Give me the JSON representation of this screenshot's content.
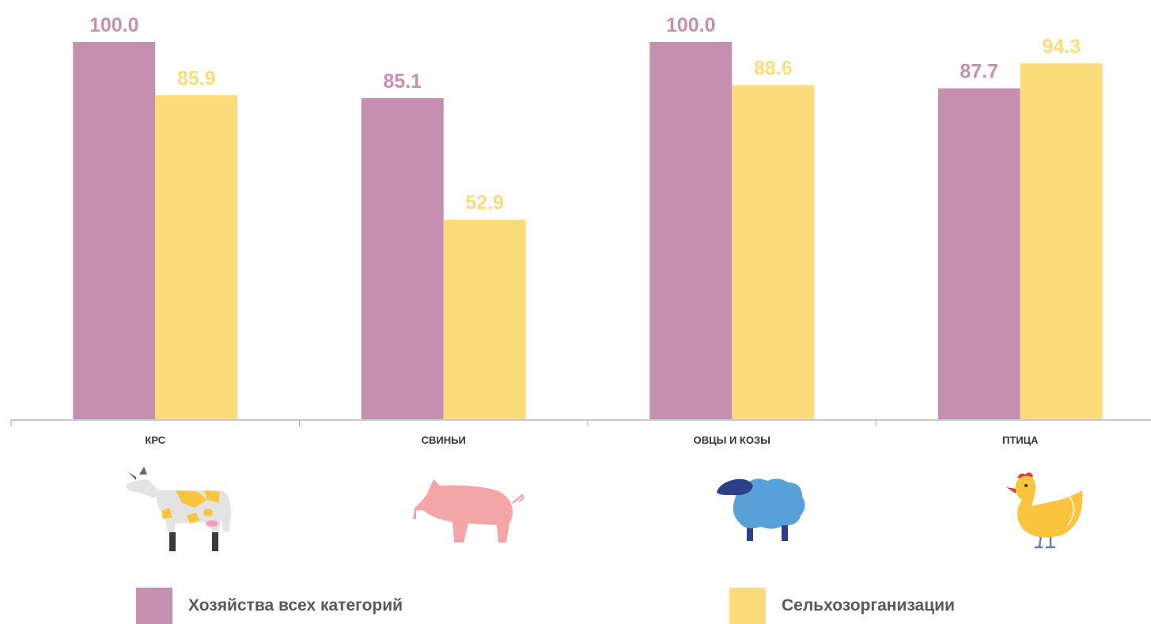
{
  "chart_data": {
    "type": "bar",
    "categories": [
      "КРС",
      "СВИНЬИ",
      "ОВЦЫ И КОЗЫ",
      "ПТИЦА"
    ],
    "series": [
      {
        "name": "Хозяйства всех категорий",
        "values": [
          100.0,
          85.1,
          100.0,
          87.7
        ],
        "color": "#c590b0"
      },
      {
        "name": "Сельхозорганизации",
        "values": [
          85.9,
          52.9,
          88.6,
          94.3
        ],
        "color": "#fcdc7a"
      }
    ],
    "ylim": [
      0,
      100
    ],
    "grid": false,
    "legend_position": "bottom"
  },
  "icons": [
    "cow-icon",
    "pig-icon",
    "sheep-icon",
    "chicken-icon"
  ]
}
